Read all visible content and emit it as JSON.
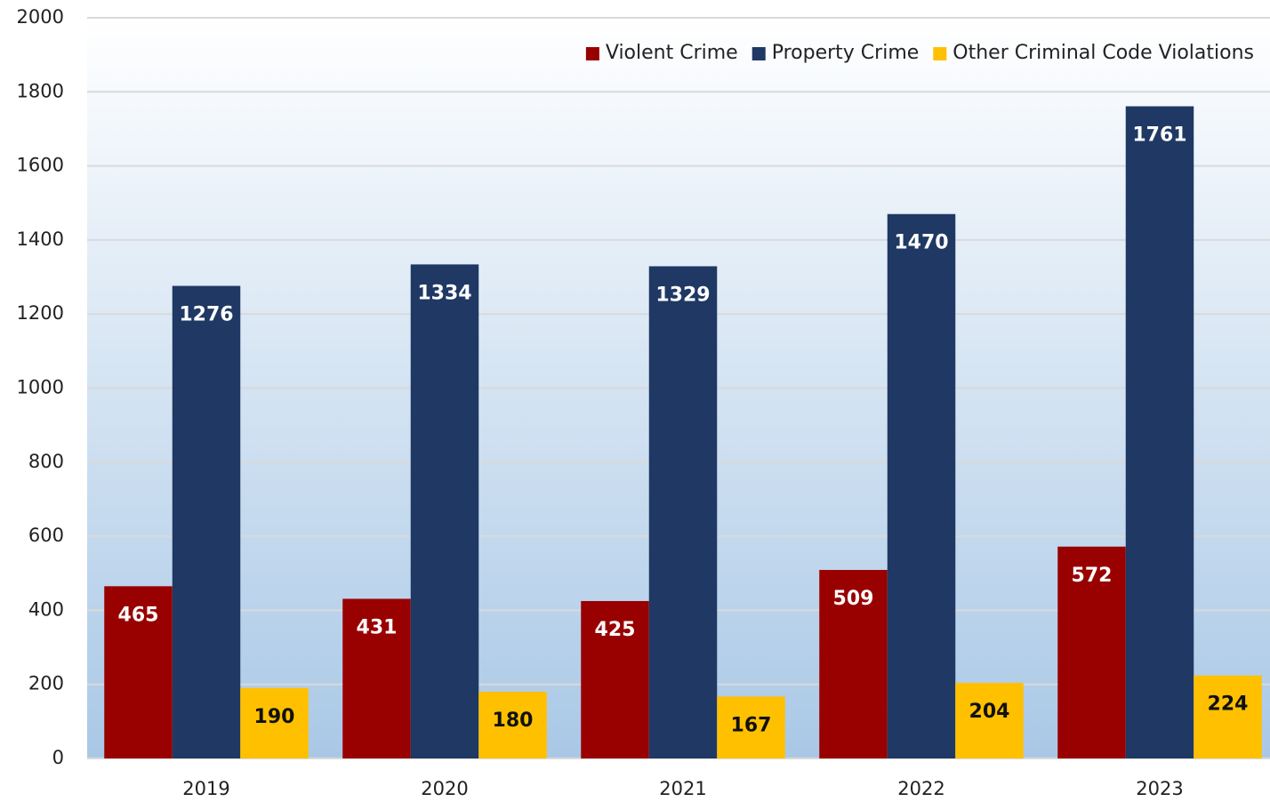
{
  "chart_data": {
    "type": "bar",
    "categories": [
      "2019",
      "2020",
      "2021",
      "2022",
      "2023"
    ],
    "series": [
      {
        "name": "Violent Crime",
        "color": "#990000",
        "values": [
          465,
          431,
          425,
          509,
          572
        ]
      },
      {
        "name": "Property Crime",
        "color": "#1f3864",
        "values": [
          1276,
          1334,
          1329,
          1470,
          1761
        ]
      },
      {
        "name": "Other Criminal Code Violations",
        "color": "#ffc000",
        "values": [
          190,
          180,
          167,
          204,
          224
        ]
      }
    ],
    "ylim": [
      0,
      2000
    ],
    "yticks": [
      0,
      200,
      400,
      600,
      800,
      1000,
      1200,
      1400,
      1600,
      1800,
      2000
    ],
    "grid": true,
    "legend": "top-right"
  }
}
